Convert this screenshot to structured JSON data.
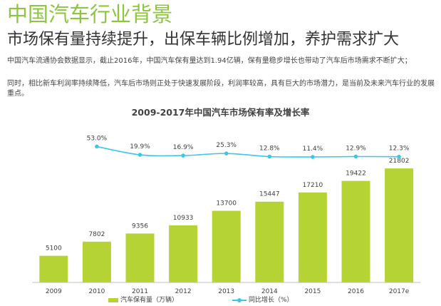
{
  "header": {
    "title": "中国汽车行业背景",
    "subtitle": "市场保有量持续提升，出保车辆比例增加，养护需求扩大",
    "paragraph1": "中国汽车流通协会数据显示，截止2016年，中国汽车保有量达到1.94亿辆，保有量稳步增长也带动了汽车后市场需求不断扩大；",
    "paragraph2": "同时，相比新车利润率持续降低，汽车后市场则正处于快速发展阶段，利润率较高，具有巨大的市场潜力，是当前及未来汽车行业的发展重点。"
  },
  "chart_data": {
    "type": "bar",
    "title": "2009-2017年中国汽车市场保有率及增长率",
    "categories": [
      "2009",
      "2010",
      "2011",
      "2012",
      "2013",
      "2014",
      "2015",
      "2016",
      "2017e"
    ],
    "series": [
      {
        "name": "汽车保有量（万辆）",
        "type": "bar",
        "values": [
          5100,
          7802,
          9356,
          10933,
          13700,
          15447,
          17210,
          19422,
          21802
        ],
        "labels": [
          "5100",
          "7802",
          "9356",
          "10933",
          "13700",
          "15447",
          "17210",
          "19422",
          "21802"
        ],
        "color": "#b5d334"
      },
      {
        "name": "同比增长（%）",
        "type": "line",
        "values": [
          null,
          53.0,
          19.9,
          16.9,
          25.3,
          12.8,
          11.4,
          12.9,
          12.3
        ],
        "labels": [
          "",
          "53.0%",
          "19.9%",
          "16.9%",
          "25.3%",
          "12.8%",
          "11.4%",
          "12.9%",
          "12.3%"
        ],
        "color": "#3ec6e8"
      }
    ],
    "ylim": [
      0,
      22500
    ],
    "grid": false,
    "legend": "bottom"
  }
}
